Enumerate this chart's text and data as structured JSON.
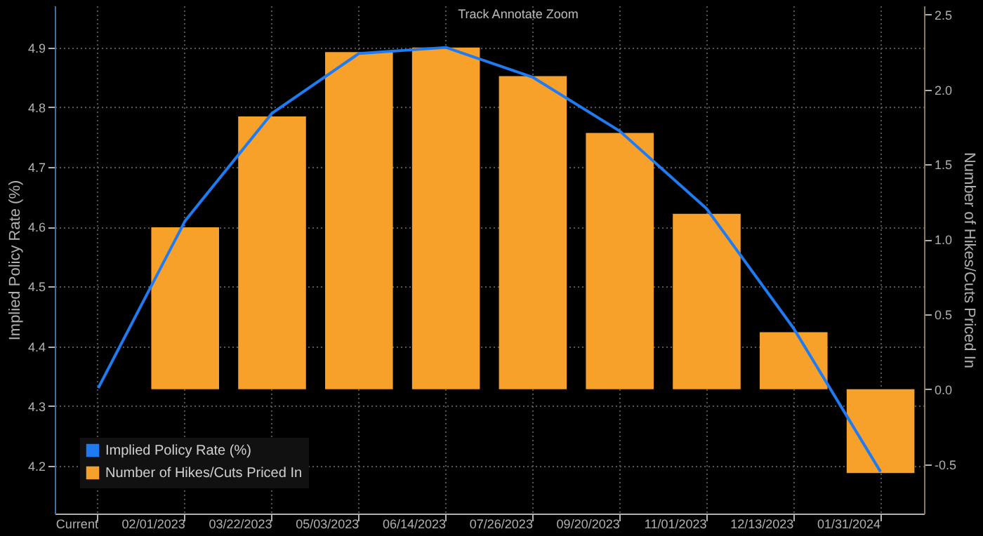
{
  "chart_data": {
    "type": "bar",
    "categories": [
      "Current",
      "02/01/2023",
      "03/22/2023",
      "05/03/2023",
      "06/14/2023",
      "07/26/2023",
      "09/20/2023",
      "11/01/2023",
      "12/13/2023",
      "01/31/2024"
    ],
    "ylabel": "Implied Policy Rate (%)",
    "y2label": "Number of Hikes/Cuts Priced In",
    "series": [
      {
        "name": "Implied Policy Rate (%)",
        "type": "line",
        "color": "#1f7bf2",
        "values": [
          4.33,
          4.61,
          4.79,
          4.89,
          4.9,
          4.85,
          4.76,
          4.63,
          4.43,
          4.19
        ]
      },
      {
        "name": "Number of Hikes/Cuts Priced In",
        "axis": "y2",
        "color": "#f7a12b",
        "values": [
          0.0,
          1.08,
          1.82,
          2.25,
          2.28,
          2.09,
          1.71,
          1.17,
          0.38,
          -0.56
        ]
      }
    ],
    "ylim": [
      4.12,
      4.97
    ],
    "yticks": [
      4.2,
      4.3,
      4.4,
      4.5,
      4.6,
      4.7,
      4.8,
      4.9
    ],
    "y2lim": [
      -0.83,
      2.56
    ],
    "y2ticks": [
      -0.5,
      {
        "value": 0,
        "label": "0.0"
      },
      0.5,
      {
        "value": 1,
        "label": "1.0"
      },
      1.5,
      {
        "value": 2,
        "label": "2.0"
      },
      2.5
    ],
    "grid": true,
    "legend": "bottom left",
    "annotations": [
      "Track",
      "Annotate",
      "Zoom"
    ]
  }
}
